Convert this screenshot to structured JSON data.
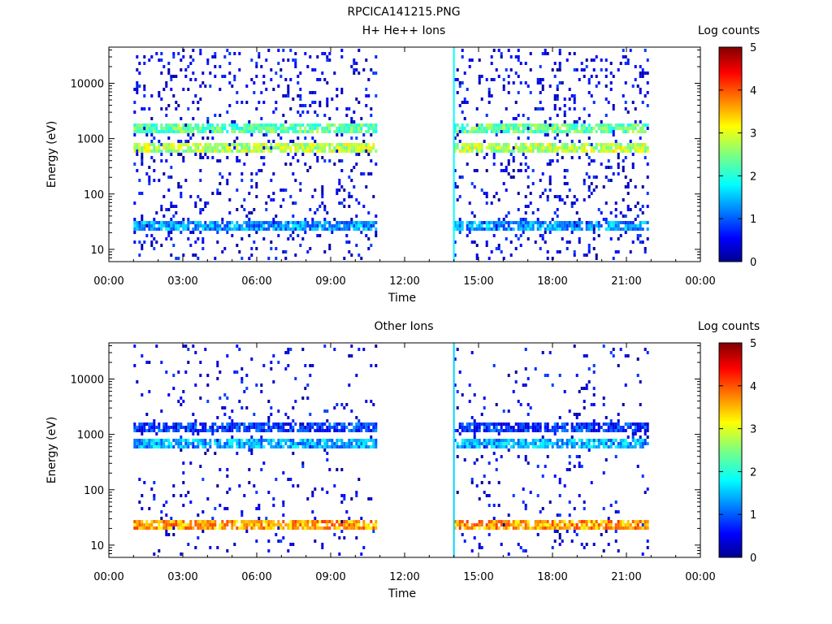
{
  "figure": {
    "title": "RPCICA141215.PNG"
  },
  "chart_data": [
    {
      "type": "heatmap",
      "title": "H+ He++ Ions",
      "xlabel": "Time",
      "ylabel": "Energy (eV)",
      "y_scale": "log",
      "ylim": [
        6,
        45000
      ],
      "xlim": [
        "00:00",
        "24:00"
      ],
      "x_ticks": [
        "00:00",
        "03:00",
        "06:00",
        "09:00",
        "12:00",
        "15:00",
        "18:00",
        "21:00",
        "00:00"
      ],
      "y_ticks": [
        "10",
        "100",
        "1000",
        "10000"
      ],
      "colorbar": {
        "label": "Log counts",
        "min": 0,
        "max": 5,
        "ticks": [
          "0",
          "1",
          "2",
          "3",
          "4",
          "5"
        ]
      },
      "data_segments": [
        {
          "start": "01:00",
          "end": "10:50"
        },
        {
          "start": "14:00",
          "end": "21:50"
        }
      ],
      "bands": [
        {
          "energy_ev": 1600,
          "log_counts": 2.3
        },
        {
          "energy_ev": 750,
          "log_counts": 2.8
        },
        {
          "energy_ev": 30,
          "log_counts": 1.3
        }
      ],
      "spike": {
        "time": "14:00",
        "log_counts": 1.8
      }
    },
    {
      "type": "heatmap",
      "title": "Other Ions",
      "xlabel": "Time",
      "ylabel": "Energy (eV)",
      "y_scale": "log",
      "ylim": [
        6,
        45000
      ],
      "xlim": [
        "00:00",
        "24:00"
      ],
      "x_ticks": [
        "00:00",
        "03:00",
        "06:00",
        "09:00",
        "12:00",
        "15:00",
        "18:00",
        "21:00",
        "00:00"
      ],
      "y_ticks": [
        "10",
        "100",
        "1000",
        "10000"
      ],
      "colorbar": {
        "label": "Log counts",
        "min": 0,
        "max": 5,
        "ticks": [
          "0",
          "1",
          "2",
          "3",
          "4",
          "5"
        ]
      },
      "data_segments": [
        {
          "start": "01:00",
          "end": "10:50"
        },
        {
          "start": "14:00",
          "end": "21:50"
        }
      ],
      "bands": [
        {
          "energy_ev": 1500,
          "log_counts": 0.8
        },
        {
          "energy_ev": 700,
          "log_counts": 1.4
        },
        {
          "energy_ev": 25,
          "log_counts": 3.6
        }
      ],
      "spike": {
        "time": "14:00",
        "log_counts": 1.6
      }
    }
  ]
}
